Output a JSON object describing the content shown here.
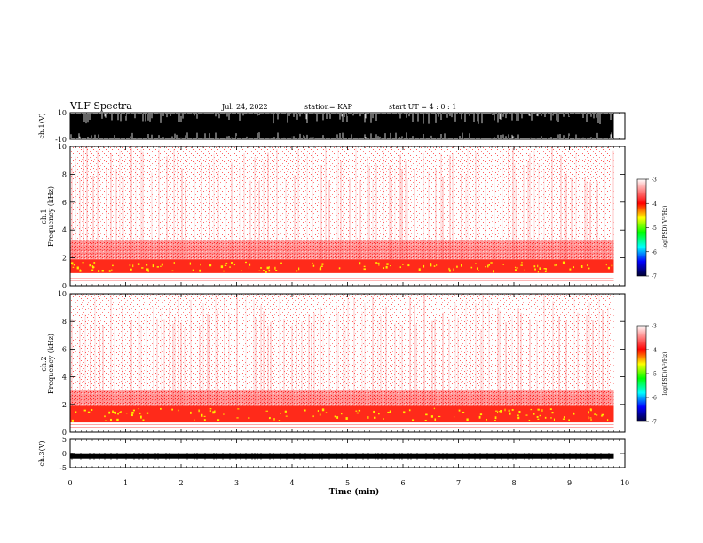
{
  "header": {
    "title": "VLF Spectra",
    "date": "Jul. 24, 2022",
    "station": "station= KAP",
    "start": "start  UT =  4 : 0  : 1"
  },
  "chart_data": [
    {
      "type": "line",
      "name": "ch1-waveform",
      "ylabel": "ch.1(V)",
      "ylim": [
        -10,
        10
      ],
      "y_ticks": [
        "10",
        "-10"
      ],
      "xlim": [
        0,
        10
      ],
      "data_end_min": 9.8
    },
    {
      "type": "heatmap",
      "name": "ch1-spectrogram",
      "ylabel_top": "ch.1",
      "ylabel": "Frequency (kHz)",
      "ylim": [
        0,
        10
      ],
      "y_ticks": [
        "0",
        "2",
        "4",
        "6",
        "8",
        "10"
      ],
      "xlim": [
        0,
        10
      ],
      "data_end_min": 9.8,
      "bands": [
        {
          "from_khz": 0.9,
          "to_khz": 1.9,
          "level": "strong"
        },
        {
          "from_khz": 1.9,
          "to_khz": 3.3,
          "level": "medium"
        },
        {
          "from_khz": 3.3,
          "to_khz": 10.0,
          "level": "weak"
        }
      ],
      "colorbar": {
        "label": "log(PSD)(V²/Hz)",
        "ticks": [
          "-3",
          "-4",
          "-5",
          "-6",
          "-7"
        ],
        "range": [
          -7,
          -3
        ]
      }
    },
    {
      "type": "heatmap",
      "name": "ch2-spectrogram",
      "ylabel_top": "ch.2",
      "ylabel": "Frequency (kHz)",
      "ylim": [
        0,
        10
      ],
      "y_ticks": [
        "0",
        "2",
        "4",
        "6",
        "8",
        "10"
      ],
      "xlim": [
        0,
        10
      ],
      "data_end_min": 9.8,
      "bands": [
        {
          "from_khz": 0.7,
          "to_khz": 1.9,
          "level": "strong"
        },
        {
          "from_khz": 1.9,
          "to_khz": 3.0,
          "level": "medium"
        },
        {
          "from_khz": 3.0,
          "to_khz": 10.0,
          "level": "weak"
        }
      ],
      "colorbar": {
        "label": "log(PSD)(V²/Hz)",
        "ticks": [
          "-3",
          "-4",
          "-5",
          "-6",
          "-7"
        ],
        "range": [
          -7,
          -3
        ]
      }
    },
    {
      "type": "line",
      "name": "ch3-waveform",
      "ylabel": "ch.3(V)",
      "ylim": [
        -5,
        5
      ],
      "y_ticks": [
        "5",
        "0",
        "-5"
      ],
      "xlim": [
        0,
        10
      ],
      "data_end_min": 9.8,
      "level_v": -1
    }
  ],
  "x_axis": {
    "label": "Time (min)",
    "ticks": [
      "0",
      "1",
      "2",
      "3",
      "4",
      "5",
      "6",
      "7",
      "8",
      "9",
      "10"
    ]
  },
  "colors": {
    "strong": "#ff2a1a",
    "medium": "#ff6a6a",
    "weak": "#ffb8b8",
    "hot": "#ffee00",
    "colorbar": [
      "#ffffff",
      "#ff0000",
      "#ffff00",
      "#00ff00",
      "#00ffff",
      "#0000ff",
      "#000033"
    ]
  }
}
